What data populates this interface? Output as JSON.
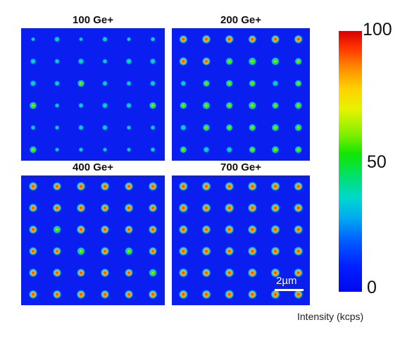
{
  "panels": [
    {
      "title": "100 Ge+",
      "intensities": [
        [
          0.05,
          0.35,
          0.05,
          0.3,
          0.1,
          0.2
        ],
        [
          0.4,
          0.25,
          0.45,
          0.2,
          0.45,
          0.4
        ],
        [
          0.45,
          0.3,
          0.55,
          0.3,
          0.25,
          0.35
        ],
        [
          0.6,
          0.15,
          0.25,
          0.4,
          0.35,
          0.55
        ],
        [
          0.2,
          0.15,
          0.3,
          0.35,
          0.15,
          0.2
        ],
        [
          0.55,
          0.1,
          0.15,
          0.1,
          0.1,
          0.2
        ]
      ]
    },
    {
      "title": "200 Ge+",
      "intensities": [
        [
          0.75,
          0.85,
          0.8,
          0.75,
          0.8,
          0.8
        ],
        [
          0.8,
          0.75,
          0.6,
          0.7,
          0.7,
          0.55
        ],
        [
          0.35,
          0.5,
          0.55,
          0.5,
          0.45,
          0.5
        ],
        [
          0.55,
          0.65,
          0.55,
          0.7,
          0.5,
          0.6
        ],
        [
          0.45,
          0.55,
          0.5,
          0.55,
          0.6,
          0.6
        ],
        [
          0.5,
          0.45,
          0.45,
          0.5,
          0.6,
          0.55
        ]
      ]
    },
    {
      "title": "400 Ge+",
      "intensities": [
        [
          0.85,
          0.8,
          0.85,
          0.85,
          0.8,
          0.85
        ],
        [
          0.8,
          0.85,
          0.85,
          0.8,
          0.85,
          0.8
        ],
        [
          0.8,
          0.7,
          0.85,
          0.8,
          0.75,
          0.8
        ],
        [
          0.75,
          0.75,
          0.7,
          0.8,
          0.7,
          0.75
        ],
        [
          0.8,
          0.8,
          0.75,
          0.8,
          0.75,
          0.7
        ],
        [
          0.8,
          0.8,
          0.85,
          0.8,
          0.8,
          0.85
        ]
      ]
    },
    {
      "title": "700 Ge+",
      "intensities": [
        [
          0.9,
          0.9,
          0.85,
          0.9,
          0.9,
          0.85
        ],
        [
          0.95,
          0.9,
          0.95,
          0.9,
          0.9,
          0.9
        ],
        [
          0.9,
          0.85,
          0.9,
          0.9,
          0.9,
          0.85
        ],
        [
          0.9,
          0.9,
          0.85,
          0.9,
          0.85,
          0.9
        ],
        [
          0.9,
          0.85,
          0.9,
          0.9,
          0.9,
          0.85
        ],
        [
          0.9,
          0.9,
          0.9,
          0.85,
          0.9,
          0.85
        ]
      ]
    }
  ],
  "colorbar": {
    "max_label": "100",
    "mid_label": "50",
    "min_label": "0",
    "label": "Intensity (kcps)"
  },
  "scalebar": {
    "label": "2µm"
  },
  "colors": {
    "background": "#0a1ef0",
    "dot_low": "#00c8ff",
    "dot_mid": "#30e000",
    "dot_high": "#ff2000"
  }
}
